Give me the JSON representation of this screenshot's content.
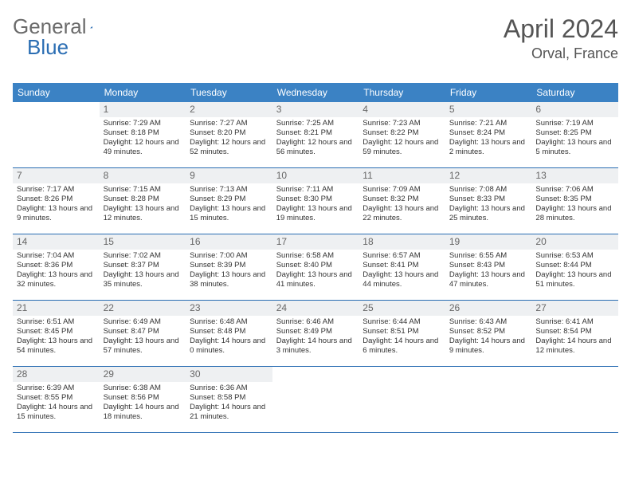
{
  "logo": {
    "part1": "General",
    "part2": "Blue"
  },
  "title": "April 2024",
  "location": "Orval, France",
  "colors": {
    "header_bg": "#3b82c4",
    "header_text": "#ffffff",
    "day_number_bg": "#eef0f2",
    "day_number_text": "#666666",
    "row_border": "#2a6db3",
    "logo_gray": "#6b6b6b",
    "logo_blue": "#2a6db3",
    "title_color": "#555555",
    "body_text": "#333333"
  },
  "weekdays": [
    "Sunday",
    "Monday",
    "Tuesday",
    "Wednesday",
    "Thursday",
    "Friday",
    "Saturday"
  ],
  "weeks": [
    [
      {
        "empty": true
      },
      {
        "n": 1,
        "sunrise": "7:29 AM",
        "sunset": "8:18 PM",
        "daylight": "12 hours and 49 minutes."
      },
      {
        "n": 2,
        "sunrise": "7:27 AM",
        "sunset": "8:20 PM",
        "daylight": "12 hours and 52 minutes."
      },
      {
        "n": 3,
        "sunrise": "7:25 AM",
        "sunset": "8:21 PM",
        "daylight": "12 hours and 56 minutes."
      },
      {
        "n": 4,
        "sunrise": "7:23 AM",
        "sunset": "8:22 PM",
        "daylight": "12 hours and 59 minutes."
      },
      {
        "n": 5,
        "sunrise": "7:21 AM",
        "sunset": "8:24 PM",
        "daylight": "13 hours and 2 minutes."
      },
      {
        "n": 6,
        "sunrise": "7:19 AM",
        "sunset": "8:25 PM",
        "daylight": "13 hours and 5 minutes."
      }
    ],
    [
      {
        "n": 7,
        "sunrise": "7:17 AM",
        "sunset": "8:26 PM",
        "daylight": "13 hours and 9 minutes."
      },
      {
        "n": 8,
        "sunrise": "7:15 AM",
        "sunset": "8:28 PM",
        "daylight": "13 hours and 12 minutes."
      },
      {
        "n": 9,
        "sunrise": "7:13 AM",
        "sunset": "8:29 PM",
        "daylight": "13 hours and 15 minutes."
      },
      {
        "n": 10,
        "sunrise": "7:11 AM",
        "sunset": "8:30 PM",
        "daylight": "13 hours and 19 minutes."
      },
      {
        "n": 11,
        "sunrise": "7:09 AM",
        "sunset": "8:32 PM",
        "daylight": "13 hours and 22 minutes."
      },
      {
        "n": 12,
        "sunrise": "7:08 AM",
        "sunset": "8:33 PM",
        "daylight": "13 hours and 25 minutes."
      },
      {
        "n": 13,
        "sunrise": "7:06 AM",
        "sunset": "8:35 PM",
        "daylight": "13 hours and 28 minutes."
      }
    ],
    [
      {
        "n": 14,
        "sunrise": "7:04 AM",
        "sunset": "8:36 PM",
        "daylight": "13 hours and 32 minutes."
      },
      {
        "n": 15,
        "sunrise": "7:02 AM",
        "sunset": "8:37 PM",
        "daylight": "13 hours and 35 minutes."
      },
      {
        "n": 16,
        "sunrise": "7:00 AM",
        "sunset": "8:39 PM",
        "daylight": "13 hours and 38 minutes."
      },
      {
        "n": 17,
        "sunrise": "6:58 AM",
        "sunset": "8:40 PM",
        "daylight": "13 hours and 41 minutes."
      },
      {
        "n": 18,
        "sunrise": "6:57 AM",
        "sunset": "8:41 PM",
        "daylight": "13 hours and 44 minutes."
      },
      {
        "n": 19,
        "sunrise": "6:55 AM",
        "sunset": "8:43 PM",
        "daylight": "13 hours and 47 minutes."
      },
      {
        "n": 20,
        "sunrise": "6:53 AM",
        "sunset": "8:44 PM",
        "daylight": "13 hours and 51 minutes."
      }
    ],
    [
      {
        "n": 21,
        "sunrise": "6:51 AM",
        "sunset": "8:45 PM",
        "daylight": "13 hours and 54 minutes."
      },
      {
        "n": 22,
        "sunrise": "6:49 AM",
        "sunset": "8:47 PM",
        "daylight": "13 hours and 57 minutes."
      },
      {
        "n": 23,
        "sunrise": "6:48 AM",
        "sunset": "8:48 PM",
        "daylight": "14 hours and 0 minutes."
      },
      {
        "n": 24,
        "sunrise": "6:46 AM",
        "sunset": "8:49 PM",
        "daylight": "14 hours and 3 minutes."
      },
      {
        "n": 25,
        "sunrise": "6:44 AM",
        "sunset": "8:51 PM",
        "daylight": "14 hours and 6 minutes."
      },
      {
        "n": 26,
        "sunrise": "6:43 AM",
        "sunset": "8:52 PM",
        "daylight": "14 hours and 9 minutes."
      },
      {
        "n": 27,
        "sunrise": "6:41 AM",
        "sunset": "8:54 PM",
        "daylight": "14 hours and 12 minutes."
      }
    ],
    [
      {
        "n": 28,
        "sunrise": "6:39 AM",
        "sunset": "8:55 PM",
        "daylight": "14 hours and 15 minutes."
      },
      {
        "n": 29,
        "sunrise": "6:38 AM",
        "sunset": "8:56 PM",
        "daylight": "14 hours and 18 minutes."
      },
      {
        "n": 30,
        "sunrise": "6:36 AM",
        "sunset": "8:58 PM",
        "daylight": "14 hours and 21 minutes."
      },
      {
        "empty": true
      },
      {
        "empty": true
      },
      {
        "empty": true
      },
      {
        "empty": true
      }
    ]
  ],
  "labels": {
    "sunrise": "Sunrise:",
    "sunset": "Sunset:",
    "daylight": "Daylight:"
  }
}
